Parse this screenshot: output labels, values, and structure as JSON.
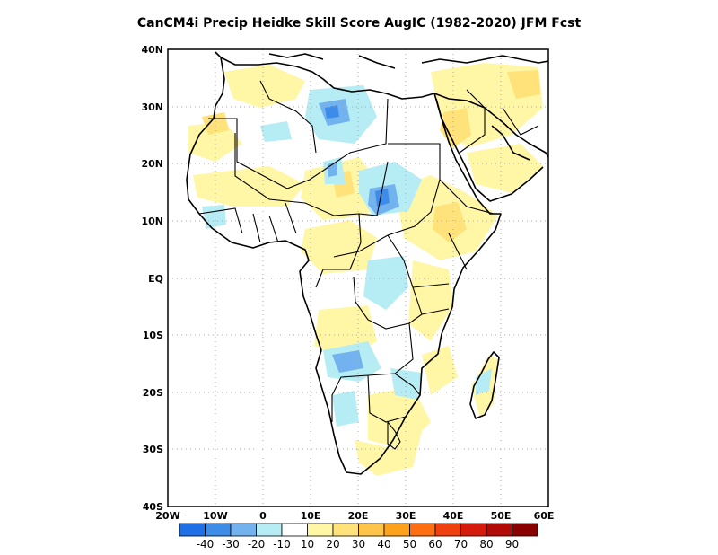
{
  "title": "CanCM4i Precip Heidke Skill Score AugIC (1982-2020) JFM Fcst",
  "map": {
    "region": "Africa",
    "projection": "lat-lon",
    "lon_range": [
      -20,
      60
    ],
    "lat_range": [
      -40,
      40
    ],
    "grid": "dotted",
    "lon_ticks": [
      "20W",
      "10W",
      "0",
      "10E",
      "20E",
      "30E",
      "40E",
      "50E",
      "60E"
    ],
    "lat_ticks": [
      "40N",
      "30N",
      "20N",
      "10N",
      "EQ",
      "10S",
      "20S",
      "30S",
      "40S"
    ]
  },
  "colorbar": {
    "colors": [
      "#1f6fe6",
      "#3d8de8",
      "#72b2ef",
      "#b6ecf3",
      "#ffffff",
      "#fff6a6",
      "#ffe27a",
      "#ffc44a",
      "#ffa21b",
      "#ff6e10",
      "#f0400d",
      "#d51b0b",
      "#b20a07",
      "#8a0000"
    ],
    "labels": [
      "-40",
      "-30",
      "-20",
      "-10",
      "10",
      "20",
      "30",
      "40",
      "50",
      "60",
      "70",
      "80",
      "90"
    ]
  }
}
